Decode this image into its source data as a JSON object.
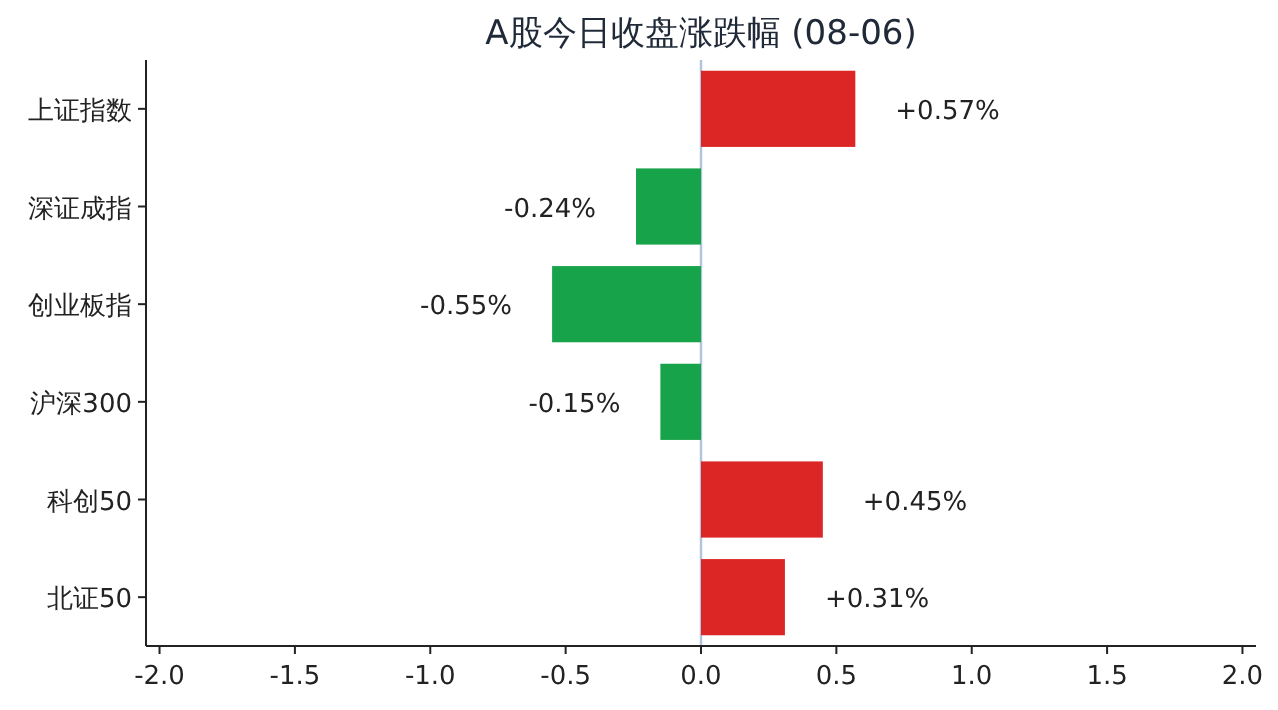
{
  "chart_data": {
    "type": "bar",
    "orientation": "horizontal",
    "title": "A股今日收盘涨跌幅 (08-06)",
    "categories": [
      "上证指数",
      "深证成指",
      "创业板指",
      "沪深300",
      "科创50",
      "北证50"
    ],
    "values": [
      0.57,
      -0.24,
      -0.55,
      -0.15,
      0.45,
      0.31
    ],
    "colors": [
      "#dc2626",
      "#16a34a",
      "#16a34a",
      "#16a34a",
      "#dc2626",
      "#dc2626"
    ],
    "value_labels": [
      "+0.57%",
      "-0.24%",
      "-0.55%",
      "-0.15%",
      "+0.45%",
      "+0.31%"
    ],
    "xlim": [
      -2.05,
      2.05
    ],
    "xticks": [
      {
        "value": -2,
        "label": "-2.0"
      },
      {
        "value": -1.5,
        "label": "-1.5"
      },
      {
        "value": -1,
        "label": "-1.0"
      },
      {
        "value": -0.5,
        "label": "-0.5"
      },
      {
        "value": 0,
        "label": "0.0"
      },
      {
        "value": 0.5,
        "label": "0.5"
      },
      {
        "value": 1,
        "label": "1.0"
      },
      {
        "value": 1.5,
        "label": "1.5"
      },
      {
        "value": 2,
        "label": "2.0"
      }
    ],
    "ref_lines": [
      {
        "axis": "x",
        "value": 0,
        "color": "#b0c4de"
      }
    ]
  }
}
